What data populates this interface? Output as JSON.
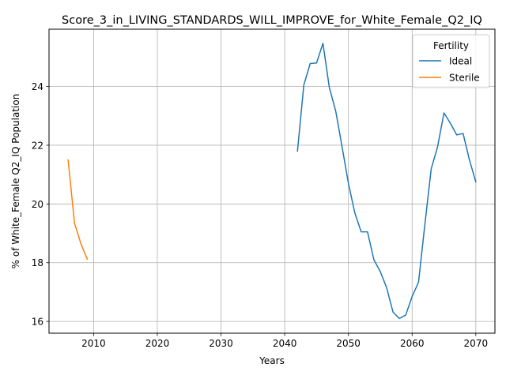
{
  "chart_data": {
    "type": "line",
    "title": "Score_3_in_LIVING_STANDARDS_WILL_IMPROVE_for_White_Female_Q2_IQ",
    "xlabel": "Years",
    "ylabel": "% of White_Female Q2_IQ Population",
    "xlim": [
      2003,
      2073
    ],
    "ylim": [
      15.6,
      25.95
    ],
    "xticks": [
      2010,
      2020,
      2030,
      2040,
      2050,
      2060,
      2070
    ],
    "yticks": [
      16,
      18,
      20,
      22,
      24
    ],
    "grid": true,
    "legend": {
      "title": "Fertility",
      "position": "top-right"
    },
    "series": [
      {
        "name": "Ideal",
        "color": "#1f77b4",
        "x": [
          2042,
          2043,
          2044,
          2045,
          2046,
          2047,
          2048,
          2049,
          2050,
          2051,
          2052,
          2053,
          2054,
          2055,
          2056,
          2057,
          2058,
          2059,
          2060,
          2061,
          2062,
          2063,
          2064,
          2065,
          2066,
          2067,
          2068,
          2069,
          2070
        ],
        "y": [
          21.8,
          24.05,
          24.78,
          24.8,
          25.47,
          23.97,
          23.17,
          21.95,
          20.7,
          19.7,
          19.05,
          19.05,
          18.1,
          17.7,
          17.15,
          16.32,
          16.1,
          16.22,
          16.85,
          17.33,
          19.3,
          21.2,
          21.95,
          23.1,
          22.75,
          22.35,
          22.4,
          21.5,
          20.75
        ]
      },
      {
        "name": "Sterile",
        "color": "#ff7f0e",
        "x": [
          2006,
          2007,
          2008,
          2009
        ],
        "y": [
          21.5,
          19.35,
          18.65,
          18.12
        ]
      }
    ]
  }
}
